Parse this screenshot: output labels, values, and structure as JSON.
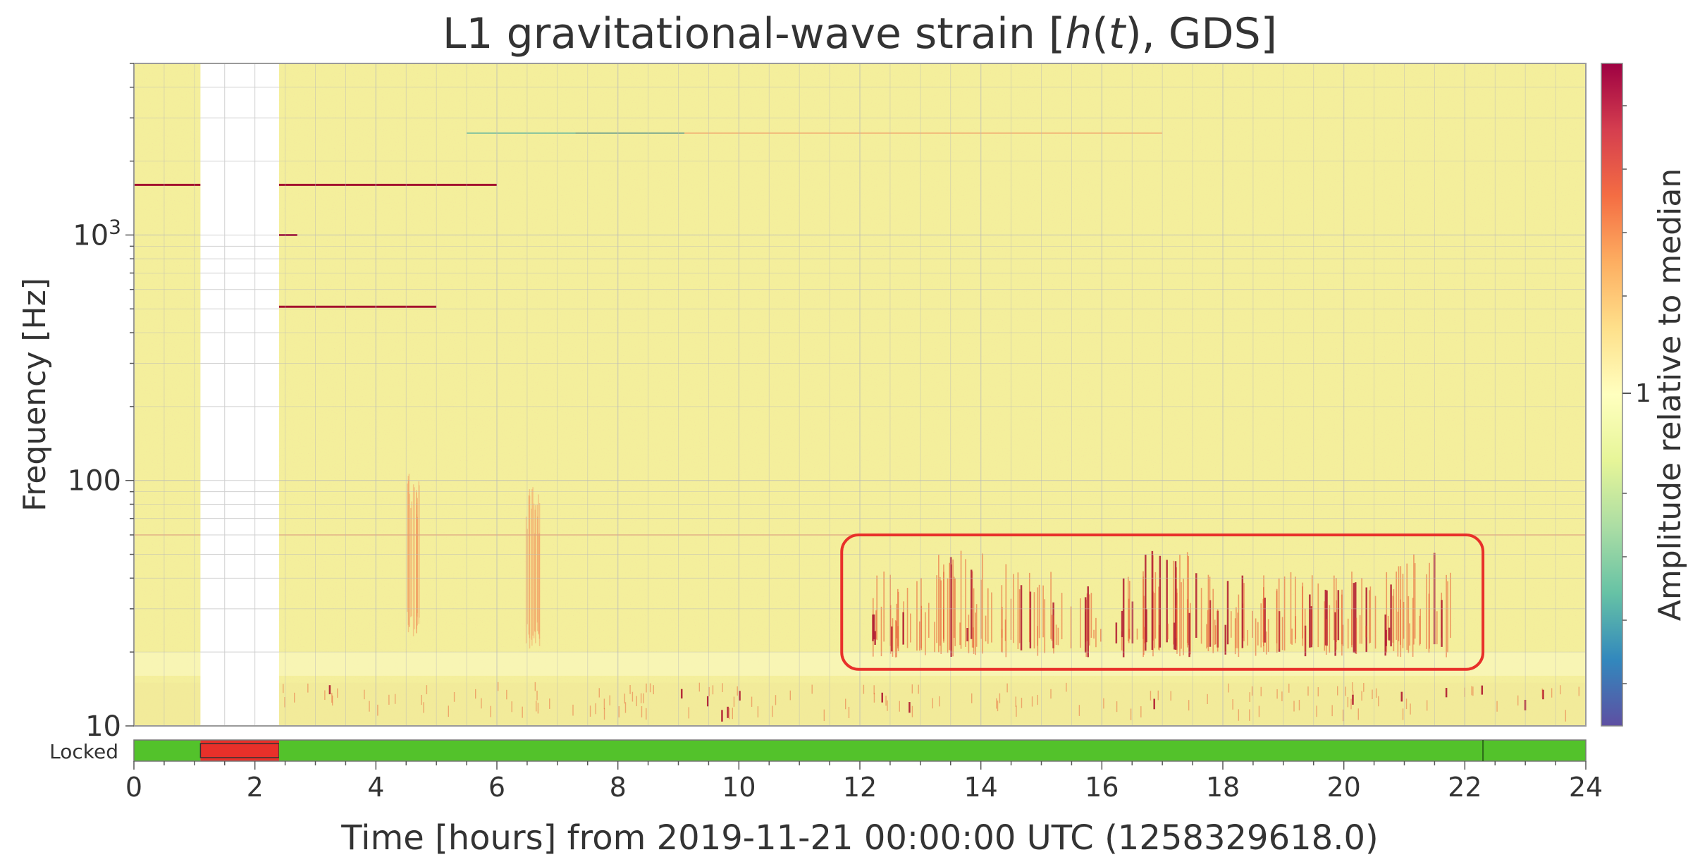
{
  "chart_data": {
    "type": "heatmap",
    "title": "L1 gravitational-wave strain [h(t), GDS]",
    "title_parts": {
      "pre": "L1 gravitational-wave strain [",
      "h": "h",
      "paren_open": "(",
      "t": "t",
      "paren_close_gds": "), GDS]"
    },
    "xlabel": "Time [hours] from 2019-11-21 00:00:00 UTC (1258329618.0)",
    "ylabel": "Frequency [Hz]",
    "colorbar_label": "Amplitude relative to median",
    "colorbar_tick": "1",
    "x_range": [
      0,
      24
    ],
    "x_ticks": [
      0,
      2,
      4,
      6,
      8,
      10,
      12,
      14,
      16,
      18,
      20,
      22,
      24
    ],
    "y_scale": "log",
    "y_range": [
      10,
      5000
    ],
    "y_ticks": [
      {
        "value": 10,
        "base": "10",
        "exp": ""
      },
      {
        "value": 100,
        "base": "100",
        "exp": ""
      },
      {
        "value": 1000,
        "base": "10",
        "exp": "3"
      }
    ],
    "gap_interval": [
      1.1,
      2.4
    ],
    "horizontal_lines": [
      {
        "f": 1600,
        "x0": 0,
        "x1": 1.1,
        "strength": 1.0
      },
      {
        "f": 1600,
        "x0": 2.4,
        "x1": 6.0,
        "strength": 0.9
      },
      {
        "f": 1000,
        "x0": 2.4,
        "x1": 2.7,
        "strength": 0.9
      },
      {
        "f": 510,
        "x0": 2.4,
        "x1": 5.0,
        "strength": 0.9
      },
      {
        "f": 2600,
        "x0": 7.3,
        "x1": 17.0,
        "strength": 0.35
      },
      {
        "f": 2600,
        "x0": 5.5,
        "x1": 9.1,
        "strength": -0.4
      },
      {
        "f": 60,
        "x0": 0,
        "x1": 24,
        "strength": 0.25
      }
    ],
    "broadband_events": [
      {
        "t": 4.6,
        "f_low": 25,
        "f_high": 110
      },
      {
        "t": 6.6,
        "f_low": 22,
        "f_high": 100
      }
    ],
    "glitch_region": {
      "t_start": 12.2,
      "t_end": 21.8,
      "f_low": 20,
      "f_high": 55
    },
    "highlight_box": {
      "t_start": 11.7,
      "t_end": 22.3,
      "f_low": 17,
      "f_high": 60,
      "color": "#e8302a"
    },
    "colormap": [
      "#5e4fa2",
      "#3288bd",
      "#66c2a5",
      "#abdda4",
      "#e6f598",
      "#ffffbf",
      "#fee08b",
      "#fdae61",
      "#f46d43",
      "#d53e4f",
      "#9e0142"
    ],
    "background_color": "#f4ef9c",
    "state_bar": {
      "label": "Locked",
      "segments": [
        {
          "start": 0,
          "end": 1.1,
          "state": "locked"
        },
        {
          "start": 1.1,
          "end": 2.4,
          "state": "unlocked"
        },
        {
          "start": 2.4,
          "end": 24,
          "state": "locked"
        }
      ],
      "locked_color": "#53c22b",
      "unlocked_color": "#e8302a",
      "marker_time": 22.3
    }
  }
}
